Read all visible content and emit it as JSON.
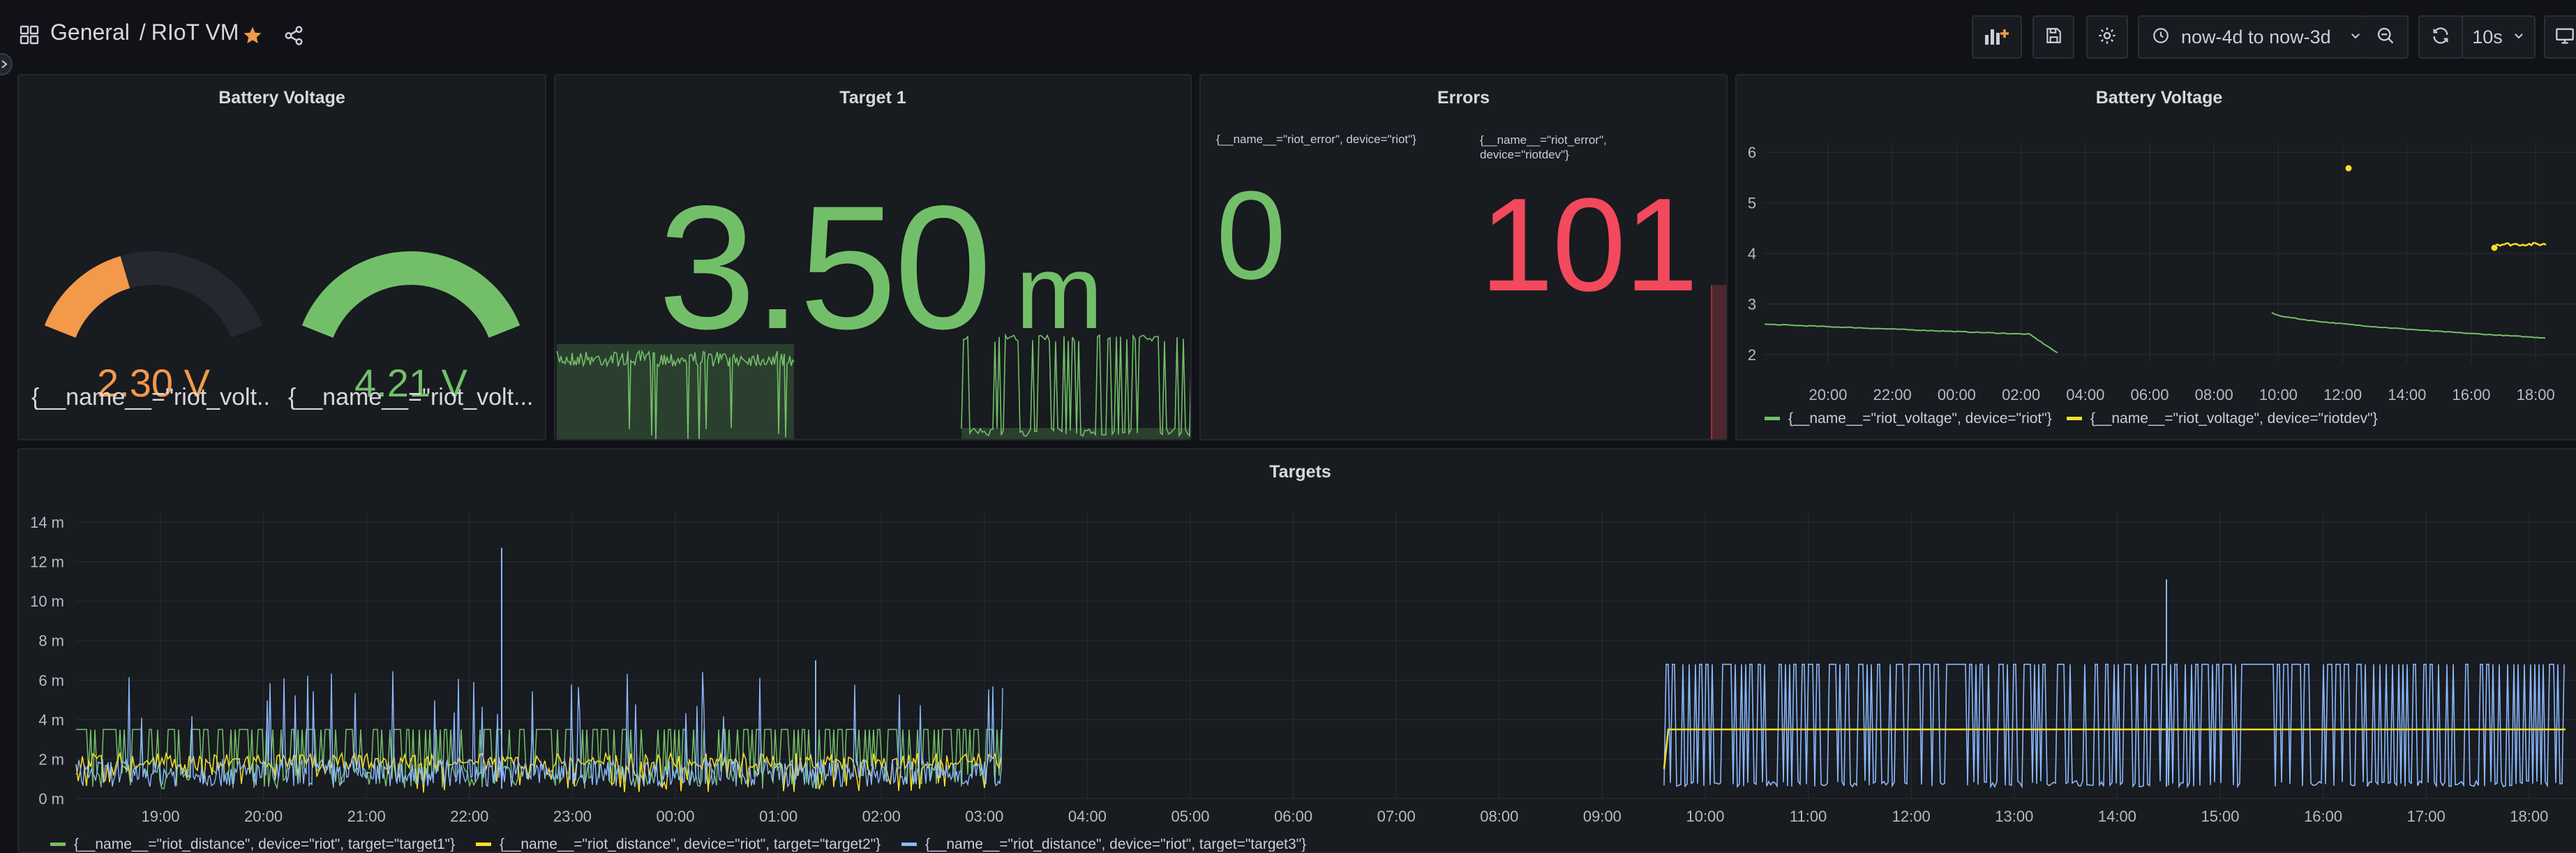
{
  "breadcrumb": {
    "folder": "General",
    "separator": "/",
    "dashboard": "RIoT VM"
  },
  "toolbar": {
    "time_range": "now-4d to now-3d",
    "refresh_interval": "10s"
  },
  "colors": {
    "green": "#73bf69",
    "orange": "#f2994a",
    "yellow": "#fade2a",
    "blue": "#8ab8ff",
    "red": "#f2495c",
    "gauge_track": "#25282e"
  },
  "icons": [
    "apps-icon",
    "star-icon",
    "share-icon",
    "add-panel-icon",
    "save-icon",
    "settings-icon",
    "clock-icon",
    "chevron-down-icon",
    "zoom-out-icon",
    "refresh-icon",
    "tv-icon",
    "collapse-arrow-icon"
  ],
  "panels": {
    "battery_gauge": {
      "title": "Battery Voltage",
      "gauges": [
        {
          "value": "2.30 V",
          "label": "{__name__=\"riot_volt...",
          "fraction": 0.38,
          "color": "#f2994a"
        },
        {
          "value": "4.21 V",
          "label": "{__name__=\"riot_volt...",
          "fraction": 1.0,
          "color": "#73bf69"
        }
      ]
    },
    "target1": {
      "title": "Target 1",
      "value": "3.50",
      "unit": "m"
    },
    "errors": {
      "title": "Errors",
      "items": [
        {
          "label": "{__name__=\"riot_error\", device=\"riot\"}",
          "value": "0",
          "color": "#73bf69"
        },
        {
          "label": "{__name__=\"riot_error\", device=\"riotdev\"}",
          "value": "101",
          "color": "#f2495c"
        }
      ]
    },
    "battery_ts": {
      "title": "Battery Voltage",
      "y_ticks": [
        "6",
        "5",
        "4",
        "3",
        "2"
      ],
      "x_ticks": [
        "20:00",
        "22:00",
        "00:00",
        "02:00",
        "04:00",
        "06:00",
        "08:00",
        "10:00",
        "12:00",
        "14:00",
        "16:00",
        "18:00"
      ],
      "legend": [
        {
          "label": "{__name__=\"riot_voltage\", device=\"riot\"}",
          "color": "#73bf69"
        },
        {
          "label": "{__name__=\"riot_voltage\", device=\"riotdev\"}",
          "color": "#fade2a"
        }
      ]
    },
    "targets": {
      "title": "Targets",
      "y_ticks": [
        "14 m",
        "12 m",
        "10 m",
        "8 m",
        "6 m",
        "4 m",
        "2 m",
        "0 m"
      ],
      "x_ticks": [
        "19:00",
        "20:00",
        "21:00",
        "22:00",
        "23:00",
        "00:00",
        "01:00",
        "02:00",
        "03:00",
        "04:00",
        "05:00",
        "06:00",
        "07:00",
        "08:00",
        "09:00",
        "10:00",
        "11:00",
        "12:00",
        "13:00",
        "14:00",
        "15:00",
        "16:00",
        "17:00",
        "18:00"
      ],
      "legend": [
        {
          "label": "{__name__=\"riot_distance\", device=\"riot\", target=\"target1\"}",
          "color": "#73bf69"
        },
        {
          "label": "{__name__=\"riot_distance\", device=\"riot\", target=\"target2\"}",
          "color": "#fade2a"
        },
        {
          "label": "{__name__=\"riot_distance\", device=\"riot\", target=\"target3\"}",
          "color": "#8ab8ff"
        }
      ]
    }
  }
}
